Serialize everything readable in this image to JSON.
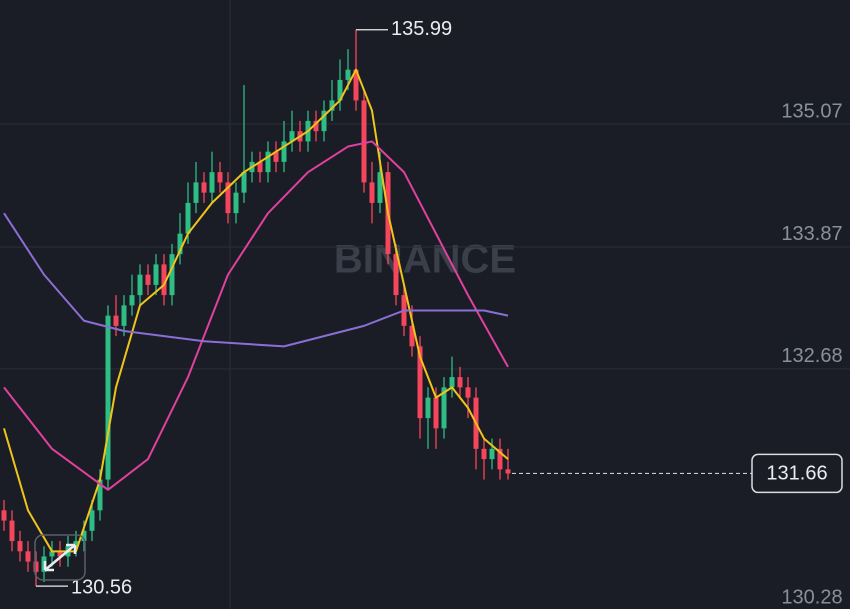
{
  "chart_data": {
    "type": "candlestick",
    "watermark": "BINANCE",
    "ylim": [
      130.22,
      136.28
    ],
    "yticks": [
      135.07,
      133.87,
      132.68,
      130.28
    ],
    "grid": true,
    "up_color": "#2ebd85",
    "down_color": "#f6465d",
    "candles": [
      [
        131.3,
        131.4,
        131.1,
        131.2
      ],
      [
        131.2,
        131.3,
        130.9,
        131.0
      ],
      [
        131.0,
        131.1,
        130.8,
        130.9
      ],
      [
        130.9,
        131.0,
        130.7,
        130.8
      ],
      [
        130.8,
        130.9,
        130.56,
        130.7
      ],
      [
        130.7,
        130.95,
        130.6,
        130.85
      ],
      [
        130.85,
        131.0,
        130.75,
        130.9
      ],
      [
        130.9,
        131.0,
        130.75,
        130.85
      ],
      [
        130.85,
        131.05,
        130.75,
        130.95
      ],
      [
        130.95,
        131.1,
        130.85,
        131.0
      ],
      [
        131.0,
        131.2,
        130.9,
        131.1
      ],
      [
        131.1,
        131.4,
        131.0,
        131.3
      ],
      [
        131.3,
        131.7,
        131.2,
        131.6
      ],
      [
        131.6,
        133.3,
        131.5,
        133.2
      ],
      [
        133.2,
        133.4,
        133.0,
        133.1
      ],
      [
        133.1,
        133.4,
        133.0,
        133.3
      ],
      [
        133.3,
        133.6,
        133.2,
        133.4
      ],
      [
        133.4,
        133.7,
        133.3,
        133.6
      ],
      [
        133.6,
        133.7,
        133.4,
        133.5
      ],
      [
        133.5,
        133.8,
        133.4,
        133.7
      ],
      [
        133.7,
        133.8,
        133.3,
        133.4
      ],
      [
        133.4,
        133.9,
        133.3,
        133.8
      ],
      [
        133.8,
        134.2,
        133.7,
        134.0
      ],
      [
        134.0,
        134.5,
        133.9,
        134.3
      ],
      [
        134.3,
        134.7,
        134.2,
        134.5
      ],
      [
        134.5,
        134.6,
        134.3,
        134.4
      ],
      [
        134.4,
        134.8,
        134.3,
        134.6
      ],
      [
        134.6,
        134.7,
        134.4,
        134.5
      ],
      [
        134.5,
        134.6,
        134.1,
        134.2
      ],
      [
        134.2,
        134.5,
        134.1,
        134.4
      ],
      [
        134.4,
        135.45,
        134.3,
        134.6
      ],
      [
        134.6,
        134.8,
        134.5,
        134.7
      ],
      [
        134.7,
        134.8,
        134.5,
        134.6
      ],
      [
        134.6,
        134.9,
        134.5,
        134.8
      ],
      [
        134.8,
        134.9,
        134.6,
        134.7
      ],
      [
        134.7,
        135.1,
        134.6,
        134.9
      ],
      [
        134.9,
        135.2,
        134.8,
        135.0
      ],
      [
        135.0,
        135.1,
        134.8,
        134.9
      ],
      [
        134.9,
        135.2,
        134.8,
        135.1
      ],
      [
        135.1,
        135.2,
        134.9,
        135.0
      ],
      [
        135.0,
        135.3,
        134.9,
        135.2
      ],
      [
        135.2,
        135.5,
        135.1,
        135.3
      ],
      [
        135.3,
        135.7,
        135.2,
        135.5
      ],
      [
        135.5,
        135.8,
        135.4,
        135.6
      ],
      [
        135.6,
        135.99,
        135.2,
        135.3
      ],
      [
        135.3,
        135.4,
        134.4,
        134.5
      ],
      [
        134.5,
        134.7,
        134.1,
        134.3
      ],
      [
        134.3,
        134.8,
        134.2,
        134.6
      ],
      [
        134.6,
        134.7,
        133.7,
        133.8
      ],
      [
        133.8,
        133.9,
        133.3,
        133.4
      ],
      [
        133.4,
        133.5,
        133.0,
        133.1
      ],
      [
        133.1,
        133.3,
        132.8,
        132.9
      ],
      [
        132.9,
        133.0,
        132.0,
        132.2
      ],
      [
        132.2,
        132.5,
        131.9,
        132.4
      ],
      [
        132.4,
        132.5,
        131.9,
        132.1
      ],
      [
        132.1,
        132.6,
        132.0,
        132.5
      ],
      [
        132.5,
        132.8,
        132.4,
        132.6
      ],
      [
        132.6,
        132.7,
        132.4,
        132.5
      ],
      [
        132.5,
        132.6,
        132.2,
        132.4
      ],
      [
        132.4,
        132.5,
        131.7,
        131.9
      ],
      [
        131.9,
        132.0,
        131.6,
        131.8
      ],
      [
        131.8,
        132.0,
        131.7,
        131.9
      ],
      [
        131.9,
        132.0,
        131.6,
        131.7
      ],
      [
        131.7,
        131.9,
        131.6,
        131.66
      ]
    ],
    "lines": [
      {
        "color": "#f0c419",
        "x": [
          0,
          3,
          6,
          9,
          12,
          14,
          17,
          20,
          23,
          26,
          30,
          34,
          38,
          42,
          44,
          46,
          48,
          50,
          52,
          54,
          56,
          58,
          60,
          63
        ],
        "values": [
          132.1,
          131.3,
          130.9,
          130.9,
          131.6,
          132.5,
          133.3,
          133.5,
          134.0,
          134.3,
          134.6,
          134.8,
          135.0,
          135.3,
          135.6,
          135.2,
          134.2,
          133.5,
          132.8,
          132.4,
          132.5,
          132.3,
          132.0,
          131.8
        ]
      },
      {
        "color": "#e0409f",
        "x": [
          0,
          6,
          13,
          18,
          23,
          28,
          33,
          38,
          43,
          46,
          50,
          54,
          58,
          63
        ],
        "values": [
          132.5,
          131.9,
          131.5,
          131.8,
          132.6,
          133.6,
          134.2,
          134.6,
          134.85,
          134.9,
          134.6,
          134.0,
          133.4,
          132.7
        ]
      },
      {
        "color": "#8c6fd6",
        "x": [
          0,
          5,
          10,
          15,
          25,
          35,
          45,
          50,
          55,
          60,
          63
        ],
        "values": [
          134.2,
          133.6,
          133.15,
          133.05,
          132.95,
          132.9,
          133.1,
          133.25,
          133.25,
          133.25,
          133.2
        ]
      }
    ]
  }
}
